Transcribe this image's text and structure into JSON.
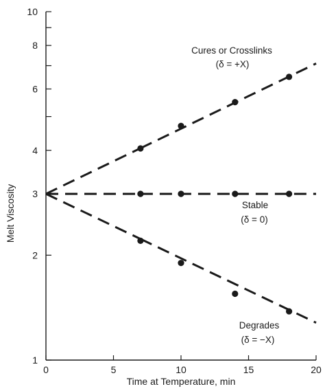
{
  "chart_data": {
    "type": "line",
    "xlabel": "Time at Temperature, min",
    "ylabel": "Melt Viscosity",
    "xlim": [
      0,
      20
    ],
    "ylim": [
      1,
      10
    ],
    "yscale": "log",
    "grid": false,
    "x_ticks": [
      0,
      5,
      10,
      15,
      20
    ],
    "x_tick_labels": [
      "0",
      "5",
      "10",
      "15",
      "20"
    ],
    "y_ticks": [
      1,
      2,
      3,
      4,
      6,
      8,
      10
    ],
    "y_tick_labels": [
      "1",
      "2",
      "3",
      "4",
      "6",
      "8",
      "10"
    ],
    "y_minor_ticks": [
      5,
      7,
      9
    ],
    "series": [
      {
        "annotation": [
          "Cures or Crosslinks",
          "(δ = +X)"
        ],
        "fit_line": {
          "x": [
            0,
            20
          ],
          "y": [
            3.0,
            7.1
          ]
        },
        "dashed_until_x": 7,
        "points": {
          "x": [
            7,
            10,
            14,
            18
          ],
          "y": [
            4.05,
            4.7,
            5.5,
            6.5
          ]
        }
      },
      {
        "annotation": [
          "Stable",
          "(δ = 0)"
        ],
        "fit_line": {
          "x": [
            0,
            20
          ],
          "y": [
            3.0,
            3.0
          ]
        },
        "dashed_until_x": 7,
        "points": {
          "x": [
            7,
            10,
            14,
            18
          ],
          "y": [
            3.0,
            3.0,
            3.0,
            3.0
          ]
        }
      },
      {
        "annotation": [
          "Degrades",
          "(δ = −X)"
        ],
        "fit_line": {
          "x": [
            0,
            20
          ],
          "y": [
            3.0,
            1.28
          ]
        },
        "dashed_until_x": 7,
        "points": {
          "x": [
            7,
            10,
            14,
            18
          ],
          "y": [
            2.2,
            1.9,
            1.55,
            1.38
          ]
        }
      }
    ]
  }
}
